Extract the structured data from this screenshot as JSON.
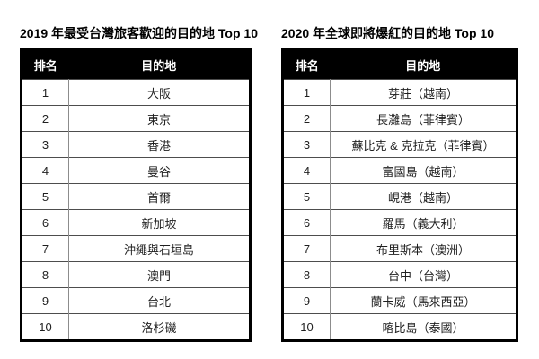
{
  "colors": {
    "background": "#ffffff",
    "header_bg": "#000000",
    "header_text": "#ffffff",
    "body_text": "#1f1f1f",
    "outer_border": "#000000",
    "row_border": "#4d4d4d",
    "column_divider": "#8c8c8c",
    "title_text": "#000000"
  },
  "tables": [
    {
      "title": "2019 年最受台灣旅客歡迎的目的地 Top 10",
      "headers": {
        "rank": "排名",
        "destination": "目的地"
      },
      "rows": [
        {
          "rank": "1",
          "destination": "大阪"
        },
        {
          "rank": "2",
          "destination": "東京"
        },
        {
          "rank": "3",
          "destination": "香港"
        },
        {
          "rank": "4",
          "destination": "曼谷"
        },
        {
          "rank": "5",
          "destination": "首爾"
        },
        {
          "rank": "6",
          "destination": "新加坡"
        },
        {
          "rank": "7",
          "destination": "沖繩與石垣島"
        },
        {
          "rank": "8",
          "destination": "澳門"
        },
        {
          "rank": "9",
          "destination": "台北"
        },
        {
          "rank": "10",
          "destination": "洛杉磯"
        }
      ]
    },
    {
      "title": "2020 年全球即將爆紅的目的地 Top 10",
      "headers": {
        "rank": "排名",
        "destination": "目的地"
      },
      "rows": [
        {
          "rank": "1",
          "destination": "芽莊（越南）"
        },
        {
          "rank": "2",
          "destination": "長灘島（菲律賓）"
        },
        {
          "rank": "3",
          "destination": "蘇比克 & 克拉克（菲律賓）"
        },
        {
          "rank": "4",
          "destination": "富國島（越南）"
        },
        {
          "rank": "5",
          "destination": "峴港（越南）"
        },
        {
          "rank": "6",
          "destination": "羅馬（義大利）"
        },
        {
          "rank": "7",
          "destination": "布里斯本（澳洲）"
        },
        {
          "rank": "8",
          "destination": "台中（台灣）"
        },
        {
          "rank": "9",
          "destination": "蘭卡威（馬來西亞）"
        },
        {
          "rank": "10",
          "destination": "喀比島（泰國）"
        }
      ]
    }
  ],
  "chart_data": [
    {
      "type": "table",
      "title": "2019 年最受台灣旅客歡迎的目的地 Top 10",
      "columns": [
        "排名",
        "目的地"
      ],
      "rows": [
        [
          "1",
          "大阪"
        ],
        [
          "2",
          "東京"
        ],
        [
          "3",
          "香港"
        ],
        [
          "4",
          "曼谷"
        ],
        [
          "5",
          "首爾"
        ],
        [
          "6",
          "新加坡"
        ],
        [
          "7",
          "沖繩與石垣島"
        ],
        [
          "8",
          "澳門"
        ],
        [
          "9",
          "台北"
        ],
        [
          "10",
          "洛杉磯"
        ]
      ]
    },
    {
      "type": "table",
      "title": "2020 年全球即將爆紅的目的地 Top 10",
      "columns": [
        "排名",
        "目的地"
      ],
      "rows": [
        [
          "1",
          "芽莊（越南）"
        ],
        [
          "2",
          "長灘島（菲律賓）"
        ],
        [
          "3",
          "蘇比克 & 克拉克（菲律賓）"
        ],
        [
          "4",
          "富國島（越南）"
        ],
        [
          "5",
          "峴港（越南）"
        ],
        [
          "6",
          "羅馬（義大利）"
        ],
        [
          "7",
          "布里斯本（澳洲）"
        ],
        [
          "8",
          "台中（台灣）"
        ],
        [
          "9",
          "蘭卡威（馬來西亞）"
        ],
        [
          "10",
          "喀比島（泰國）"
        ]
      ]
    }
  ]
}
